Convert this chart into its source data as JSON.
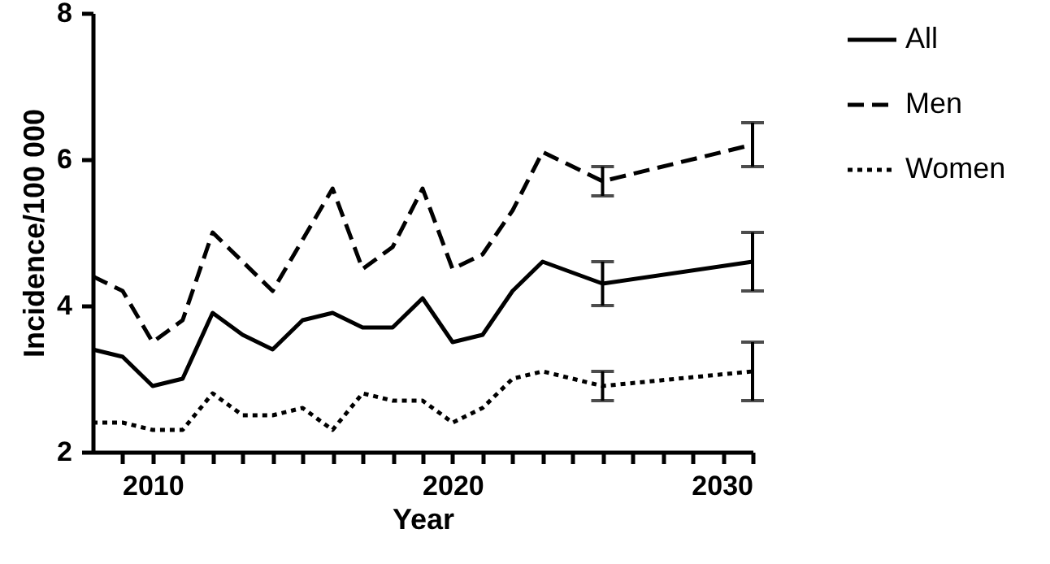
{
  "chart_data": {
    "type": "line",
    "xlabel": "Year",
    "ylabel": "Incidence/100 000",
    "x": [
      2008,
      2009,
      2010,
      2011,
      2012,
      2013,
      2014,
      2015,
      2016,
      2017,
      2018,
      2019,
      2020,
      2021,
      2022,
      2023,
      2025,
      2030
    ],
    "series": [
      {
        "name": "All",
        "color": "#000000",
        "line_style": "solid",
        "values": [
          3.4,
          3.3,
          2.9,
          3.0,
          3.9,
          3.6,
          3.4,
          3.8,
          3.9,
          3.7,
          3.7,
          4.1,
          3.5,
          3.6,
          4.2,
          4.6,
          4.3,
          4.6
        ],
        "errors": [
          null,
          null,
          null,
          null,
          null,
          null,
          null,
          null,
          null,
          null,
          null,
          null,
          null,
          null,
          null,
          null,
          0.3,
          0.4
        ]
      },
      {
        "name": "Men",
        "color": "#000000",
        "line_style": "dashed",
        "values": [
          4.4,
          4.2,
          3.5,
          3.8,
          5.0,
          4.6,
          4.2,
          4.9,
          5.6,
          4.5,
          4.8,
          5.6,
          4.5,
          4.7,
          5.3,
          6.1,
          5.7,
          6.2
        ],
        "errors": [
          null,
          null,
          null,
          null,
          null,
          null,
          null,
          null,
          null,
          null,
          null,
          null,
          null,
          null,
          null,
          null,
          0.2,
          0.3
        ]
      },
      {
        "name": "Women",
        "color": "#000000",
        "line_style": "dotted",
        "values": [
          2.4,
          2.4,
          2.3,
          2.3,
          2.8,
          2.5,
          2.5,
          2.6,
          2.3,
          2.8,
          2.7,
          2.7,
          2.4,
          2.6,
          3.0,
          3.1,
          2.9,
          3.1
        ],
        "errors": [
          null,
          null,
          null,
          null,
          null,
          null,
          null,
          null,
          null,
          null,
          null,
          null,
          null,
          null,
          null,
          null,
          0.2,
          0.4
        ]
      }
    ],
    "xlim": [
      2008,
      2030
    ],
    "xticks": [
      {
        "value": 2009,
        "label": null
      },
      2010,
      {
        "value": 2011,
        "label": null
      },
      {
        "value": 2012,
        "label": null
      },
      {
        "value": 2013,
        "label": null
      },
      {
        "value": 2014,
        "label": null
      },
      {
        "value": 2015,
        "label": null
      },
      {
        "value": 2016,
        "label": null
      },
      {
        "value": 2017,
        "label": null
      },
      {
        "value": 2018,
        "label": null
      },
      {
        "value": 2019,
        "label": null
      },
      2020,
      {
        "value": 2021,
        "label": null
      },
      {
        "value": 2022,
        "label": null
      },
      {
        "value": 2023,
        "label": null
      },
      {
        "value": 2024,
        "label": null
      },
      {
        "value": 2025,
        "label": null
      },
      {
        "value": 2026,
        "label": null
      },
      {
        "value": 2027,
        "label": null
      },
      {
        "value": 2028,
        "label": null
      },
      {
        "value": 2029,
        "label": null
      },
      2030
    ],
    "ylim": [
      2,
      8
    ],
    "yticks": [
      2,
      4,
      6,
      8
    ],
    "grid": false,
    "legend": "top right"
  }
}
